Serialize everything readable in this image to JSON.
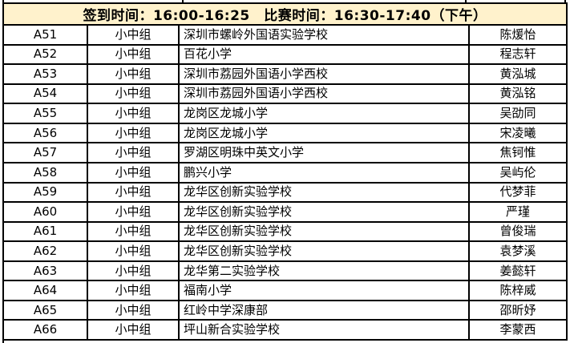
{
  "banner": {
    "text": "签到时间：16:00-16:25　比赛时间：16:30-17:40（下午）",
    "signin_time": "16:00-16:25",
    "match_time": "16:30-17:40（下午）"
  },
  "colors": {
    "banner_bg": "#fff2cc",
    "border": "#000000",
    "row_bg": "#ffffff",
    "text": "#000000"
  },
  "table": {
    "rows": [
      {
        "id": "A51",
        "group": "小中组",
        "school": "深圳市螺岭外国语实验学校",
        "name": "陈煖怡"
      },
      {
        "id": "A52",
        "group": "小中组",
        "school": "百花小学",
        "name": "程志轩"
      },
      {
        "id": "A53",
        "group": "小中组",
        "school": "深圳市荔园外国语小学西校",
        "name": "黄泓城"
      },
      {
        "id": "A54",
        "group": "小中组",
        "school": "深圳市荔园外国语小学西校",
        "name": "黄泓铭"
      },
      {
        "id": "A55",
        "group": "小中组",
        "school": "龙岗区龙城小学",
        "name": "吴劭同"
      },
      {
        "id": "A56",
        "group": "小中组",
        "school": "龙岗区龙城小学",
        "name": "宋凌曦"
      },
      {
        "id": "A57",
        "group": "小中组",
        "school": "罗湖区明珠中英文小学",
        "name": "焦钶惟"
      },
      {
        "id": "A58",
        "group": "小中组",
        "school": "鹏兴小学",
        "name": "吴屿伦"
      },
      {
        "id": "A59",
        "group": "小中组",
        "school": "龙华区创新实验学校",
        "name": "代梦菲"
      },
      {
        "id": "A60",
        "group": "小中组",
        "school": "龙华区创新实验学校",
        "name": "严瑾"
      },
      {
        "id": "A61",
        "group": "小中组",
        "school": "龙华区创新实验学校",
        "name": "曾俊瑞"
      },
      {
        "id": "A62",
        "group": "小中组",
        "school": "龙华区创新实验学校",
        "name": "袁梦溪"
      },
      {
        "id": "A63",
        "group": "小中组",
        "school": "龙华第二实验学校",
        "name": "姜懿轩"
      },
      {
        "id": "A64",
        "group": "小中组",
        "school": "福南小学",
        "name": "陈梓威"
      },
      {
        "id": "A65",
        "group": "小中组",
        "school": "红岭中学深康部",
        "name": "邵昕妤"
      },
      {
        "id": "A66",
        "group": "小中组",
        "school": "坪山新合实验学校",
        "name": "李蒙西"
      }
    ]
  }
}
